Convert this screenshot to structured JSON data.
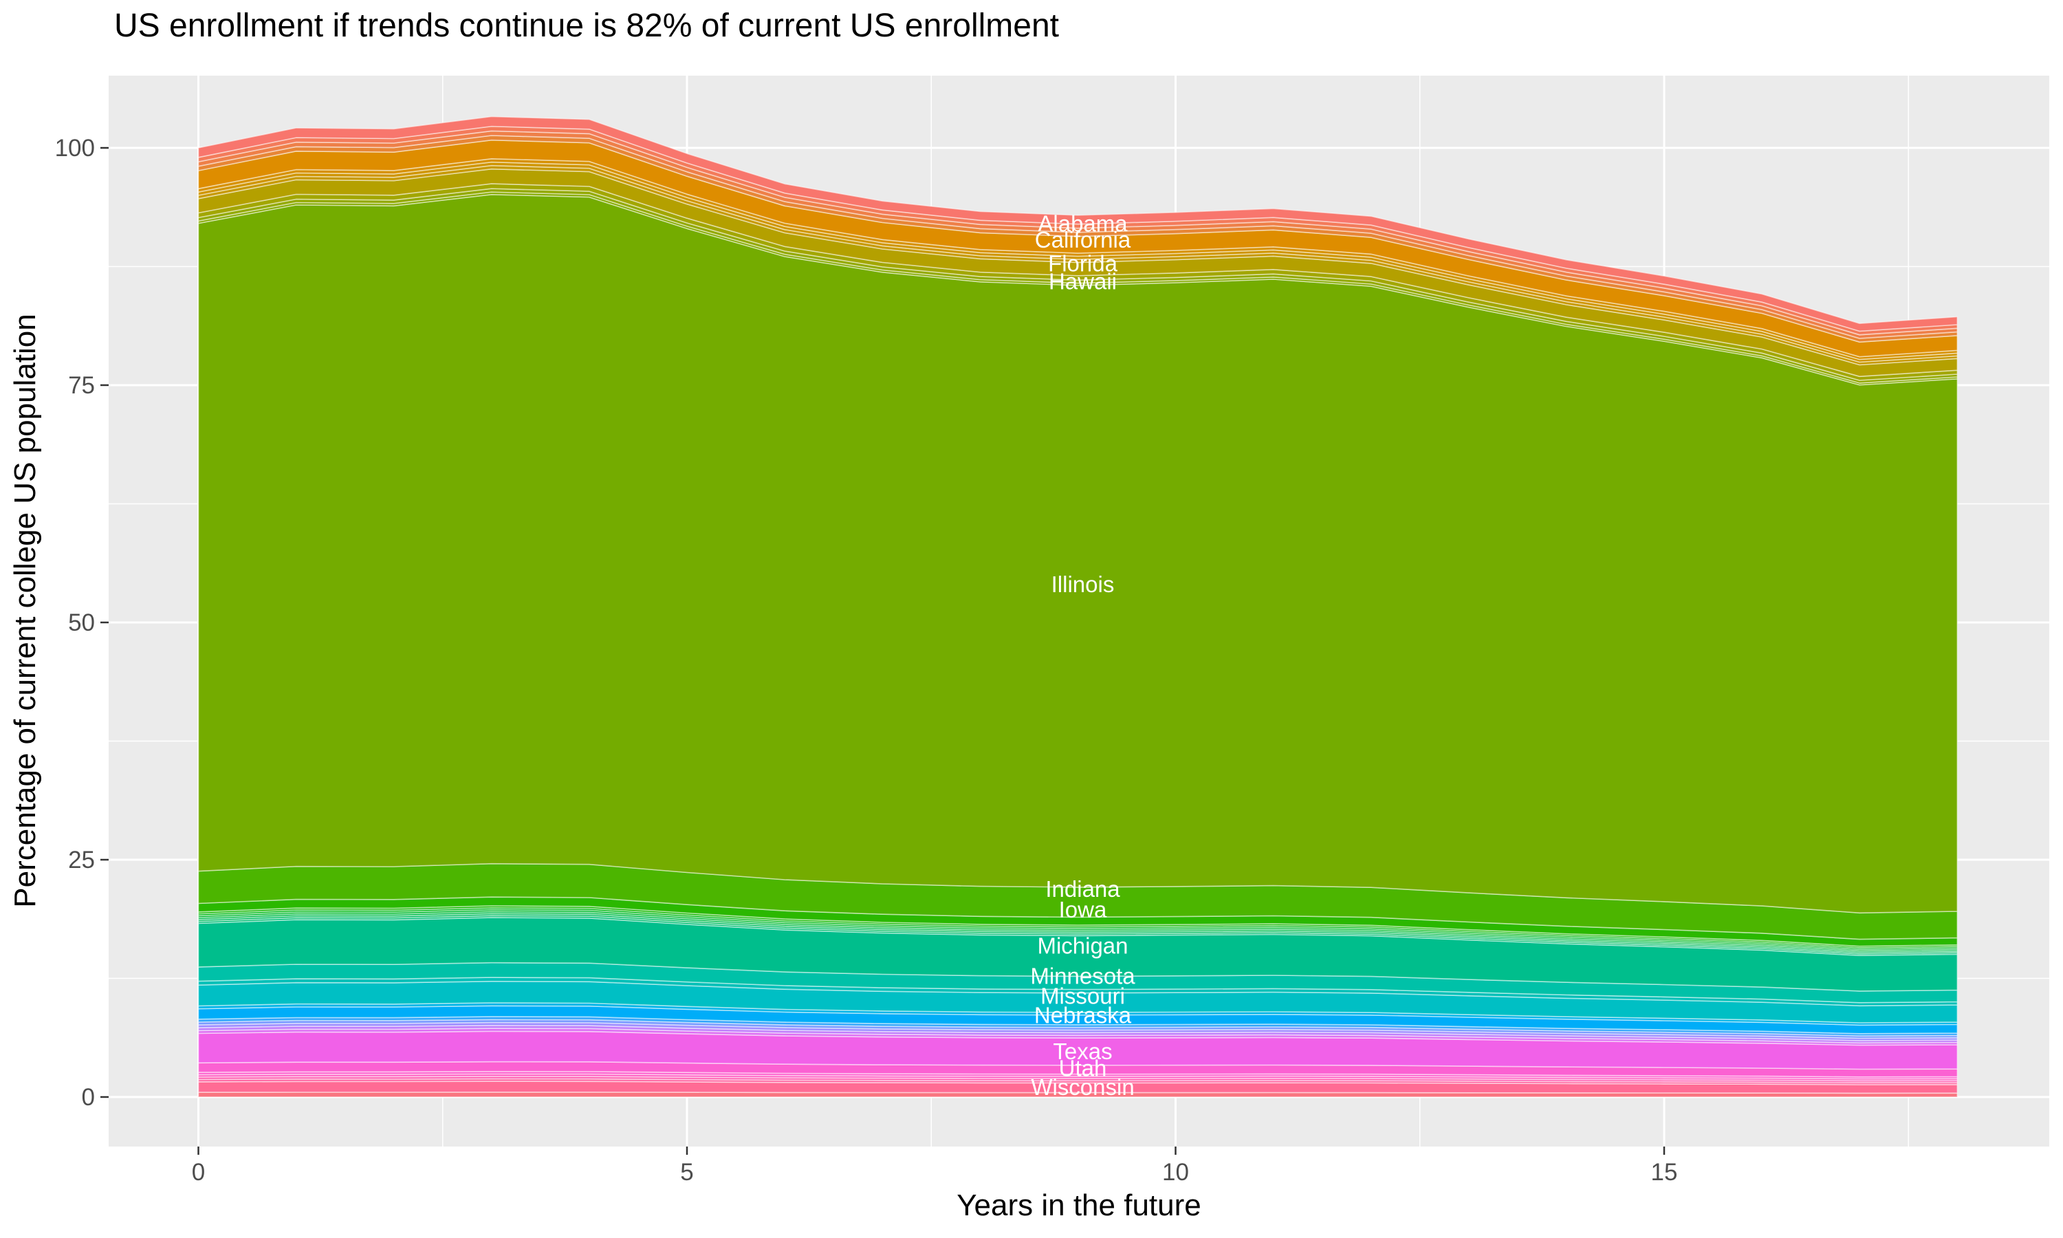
{
  "chart_data": {
    "type": "area",
    "stacked": true,
    "title": "US enrollment if trends continue is 82% of current US enrollment",
    "xlabel": "Years in the future",
    "ylabel": "Percentage of current college US population",
    "x": [
      0,
      1,
      2,
      3,
      4,
      5,
      6,
      7,
      8,
      9,
      10,
      11,
      12,
      13,
      14,
      15,
      16,
      17,
      18
    ],
    "total_pct": [
      100.0,
      102.1,
      102.0,
      103.3,
      103.0,
      99.4,
      96.2,
      94.4,
      93.3,
      92.9,
      93.2,
      93.6,
      92.8,
      90.4,
      88.2,
      86.5,
      84.6,
      81.5,
      82.2
    ],
    "x_ticks": [
      0,
      5,
      10,
      15
    ],
    "x_minor": [
      2.5,
      7.5,
      12.5,
      17.5
    ],
    "y_ticks": [
      0,
      25,
      50,
      75,
      100
    ],
    "y_minor": [
      12.5,
      37.5,
      62.5,
      87.5
    ],
    "ylim": [
      -5.2,
      107.6
    ],
    "xlim": [
      -0.92,
      18.94
    ],
    "legend": "none",
    "panel_bg": "#EBEBEB",
    "grid_color": "#FFFFFF",
    "tick_color": "#333333",
    "tick_text_color": "#4D4D4D",
    "label_text_color": "#FFFFFF",
    "bands_note": "bottom-to-top stack; pct_of_total = share of stack total at every year; bands with several colors are groups of thin unlabeled state strips",
    "bands": [
      {
        "name": "unlabeled-below-wisconsin",
        "labeled": false,
        "pct_of_total": 0.5,
        "colors": [
          "#F97580"
        ]
      },
      {
        "name": "Wisconsin",
        "labeled": true,
        "pct_of_total": 1.1,
        "colors": [
          "#FF6B94"
        ]
      },
      {
        "name": "unlabeled-wisconsin-utah",
        "labeled": false,
        "pct_of_total": 1.0,
        "colors": [
          "#FF68A2",
          "#FF65B4",
          "#FF63C4",
          "#FD62CF"
        ]
      },
      {
        "name": "Utah",
        "labeled": true,
        "pct_of_total": 1.0,
        "colors": [
          "#FB61D2"
        ]
      },
      {
        "name": "Texas",
        "labeled": true,
        "pct_of_total": 3.1,
        "colors": [
          "#F161E8"
        ]
      },
      {
        "name": "unlabeled-texas-nebraska",
        "labeled": false,
        "pct_of_total": 1.5,
        "colors": [
          "#DE71F3",
          "#C181FB",
          "#A08FFF",
          "#7B9CFF",
          "#35A7FB"
        ]
      },
      {
        "name": "Nebraska",
        "labeled": true,
        "pct_of_total": 1.1,
        "colors": [
          "#00ADF8"
        ]
      },
      {
        "name": "unlabeled-nebraska-missouri",
        "labeled": false,
        "pct_of_total": 0.3,
        "colors": [
          "#00B5E8"
        ]
      },
      {
        "name": "Missouri",
        "labeled": true,
        "pct_of_total": 2.2,
        "colors": [
          "#00BFC4"
        ]
      },
      {
        "name": "unlabeled-missouri-minnesota",
        "labeled": false,
        "pct_of_total": 0.4,
        "colors": [
          "#00C0B8"
        ]
      },
      {
        "name": "Minnesota",
        "labeled": true,
        "pct_of_total": 1.5,
        "colors": [
          "#00C1A8"
        ]
      },
      {
        "name": "Michigan",
        "labeled": true,
        "pct_of_total": 4.6,
        "colors": [
          "#00BE8C"
        ]
      },
      {
        "name": "unlabeled-michigan-iowa",
        "labeled": false,
        "pct_of_total": 1.2,
        "colors": [
          "#00BE74",
          "#00BD60",
          "#00BC49",
          "#00BA2E",
          "#00B914",
          "#16B800"
        ]
      },
      {
        "name": "Iowa",
        "labeled": true,
        "pct_of_total": 0.9,
        "colors": [
          "#2BB800"
        ]
      },
      {
        "name": "Indiana",
        "labeled": true,
        "pct_of_total": 3.4,
        "colors": [
          "#4CB500"
        ]
      },
      {
        "name": "Illinois",
        "labeled": true,
        "pct_of_total": 68.25,
        "colors": [
          "#74AC00"
        ]
      },
      {
        "name": "unlabeled-illinois-hawaii",
        "labeled": false,
        "pct_of_total": 0.25,
        "colors": [
          "#85AB00"
        ]
      },
      {
        "name": "Hawaii",
        "labeled": true,
        "pct_of_total": 0.35,
        "colors": [
          "#93A900"
        ]
      },
      {
        "name": "unlabeled-hawaii-florida",
        "labeled": false,
        "pct_of_total": 0.5,
        "colors": [
          "#A2A600"
        ]
      },
      {
        "name": "Florida",
        "labeled": true,
        "pct_of_total": 1.5,
        "colors": [
          "#B4A000"
        ]
      },
      {
        "name": "unlabeled-florida-california",
        "labeled": false,
        "pct_of_total": 1.05,
        "colors": [
          "#C79900",
          "#CF9500",
          "#D79100"
        ]
      },
      {
        "name": "California",
        "labeled": true,
        "pct_of_total": 1.9,
        "colors": [
          "#DE8D00"
        ]
      },
      {
        "name": "unlabeled-california-alabama",
        "labeled": false,
        "pct_of_total": 1.4,
        "colors": [
          "#E78636",
          "#EE8049",
          "#F37B5B"
        ]
      },
      {
        "name": "Alabama",
        "labeled": true,
        "pct_of_total": 1.0,
        "colors": [
          "#F8766D"
        ]
      }
    ],
    "state_labels": [
      {
        "text": "Alabama",
        "x_year": 9.05,
        "y_pct": 92.0
      },
      {
        "text": "California",
        "x_year": 9.05,
        "y_pct": 90.3
      },
      {
        "text": "Florida",
        "x_year": 9.05,
        "y_pct": 87.8
      },
      {
        "text": "Hawaii",
        "x_year": 9.05,
        "y_pct": 85.9
      },
      {
        "text": "Illinois",
        "x_year": 9.05,
        "y_pct": 54.0
      },
      {
        "text": "Indiana",
        "x_year": 9.05,
        "y_pct": 21.9
      },
      {
        "text": "Iowa",
        "x_year": 9.05,
        "y_pct": 19.7
      },
      {
        "text": "Michigan",
        "x_year": 9.05,
        "y_pct": 15.9
      },
      {
        "text": "Minnesota",
        "x_year": 9.05,
        "y_pct": 12.7
      },
      {
        "text": "Missouri",
        "x_year": 9.05,
        "y_pct": 10.6
      },
      {
        "text": "Nebraska",
        "x_year": 9.05,
        "y_pct": 8.6
      },
      {
        "text": "Texas",
        "x_year": 9.05,
        "y_pct": 4.8
      },
      {
        "text": "Utah",
        "x_year": 9.05,
        "y_pct": 3.0
      },
      {
        "text": "Wisconsin",
        "x_year": 9.05,
        "y_pct": 1.0
      }
    ]
  }
}
